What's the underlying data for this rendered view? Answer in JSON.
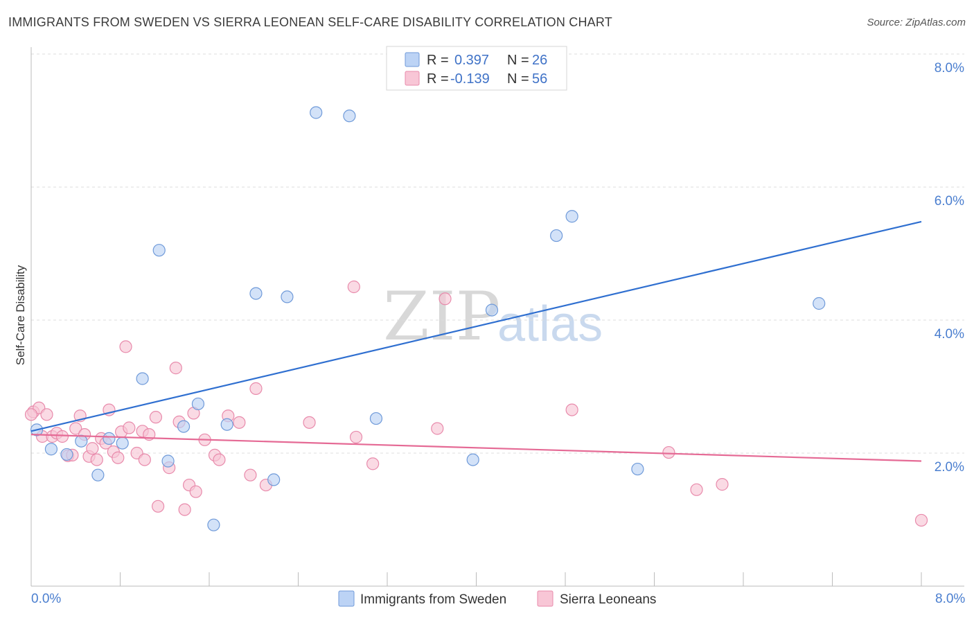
{
  "header": {
    "title": "IMMIGRANTS FROM SWEDEN VS SIERRA LEONEAN SELF-CARE DISABILITY CORRELATION CHART",
    "source": "Source: ZipAtlas.com"
  },
  "watermark": {
    "zip": "ZIP",
    "atlas": "atlas"
  },
  "colors": {
    "blue_fill": "#bcd3f5",
    "blue_stroke": "#6f9ad9",
    "blue_line": "#2f6fd0",
    "pink_fill": "#f8c6d6",
    "pink_stroke": "#e88aab",
    "pink_line": "#e56a95",
    "grid": "#dddddd",
    "tick_label": "#4a7ecf"
  },
  "legend": {
    "r_label": "R =",
    "n_label": "N =",
    "series": [
      {
        "r": "0.397",
        "n": "26"
      },
      {
        "r": "-0.139",
        "n": "56"
      }
    ]
  },
  "chart_data": {
    "type": "scatter",
    "title": "IMMIGRANTS FROM SWEDEN VS SIERRA LEONEAN SELF-CARE DISABILITY CORRELATION CHART",
    "xlabel": "",
    "ylabel": "Self-Care Disability",
    "xlim": [
      0,
      8
    ],
    "ylim": [
      0,
      8
    ],
    "x_tick_labels": {
      "min": "0.0%",
      "max": "8.0%"
    },
    "y_ticks": [
      {
        "value": 2,
        "label": "2.0%"
      },
      {
        "value": 4,
        "label": "4.0%"
      },
      {
        "value": 6,
        "label": "6.0%"
      },
      {
        "value": 8,
        "label": "8.0%"
      }
    ],
    "series": [
      {
        "name": "Immigrants from Sweden",
        "color": "blue",
        "trend": {
          "x0": 0.0,
          "y0": 2.33,
          "x1": 8.0,
          "y1": 5.48
        },
        "points": [
          [
            0.05,
            2.35
          ],
          [
            0.18,
            2.06
          ],
          [
            0.32,
            1.98
          ],
          [
            0.45,
            2.18
          ],
          [
            0.6,
            1.67
          ],
          [
            0.7,
            2.22
          ],
          [
            0.82,
            2.15
          ],
          [
            1.0,
            3.12
          ],
          [
            1.15,
            5.05
          ],
          [
            1.23,
            1.88
          ],
          [
            1.37,
            2.4
          ],
          [
            1.5,
            2.74
          ],
          [
            1.64,
            0.92
          ],
          [
            1.76,
            2.43
          ],
          [
            2.02,
            4.4
          ],
          [
            2.18,
            1.6
          ],
          [
            2.3,
            4.35
          ],
          [
            2.56,
            7.12
          ],
          [
            2.86,
            7.07
          ],
          [
            3.1,
            2.52
          ],
          [
            3.97,
            1.9
          ],
          [
            4.14,
            4.15
          ],
          [
            4.72,
            5.27
          ],
          [
            4.86,
            5.56
          ],
          [
            5.45,
            1.76
          ],
          [
            7.08,
            4.25
          ]
        ]
      },
      {
        "name": "Sierra Leoneans",
        "color": "pink",
        "trend": {
          "x0": 0.0,
          "y0": 2.28,
          "x1": 8.0,
          "y1": 1.88
        },
        "points": [
          [
            0.02,
            2.62
          ],
          [
            0.07,
            2.68
          ],
          [
            0.1,
            2.25
          ],
          [
            0.14,
            2.58
          ],
          [
            0.19,
            2.25
          ],
          [
            0.23,
            2.3
          ],
          [
            0.28,
            2.25
          ],
          [
            0.33,
            1.96
          ],
          [
            0.37,
            1.97
          ],
          [
            0.4,
            2.37
          ],
          [
            0.44,
            2.56
          ],
          [
            0.48,
            2.28
          ],
          [
            0.52,
            1.95
          ],
          [
            0.55,
            2.07
          ],
          [
            0.59,
            1.9
          ],
          [
            0.63,
            2.22
          ],
          [
            0.67,
            2.15
          ],
          [
            0.7,
            2.65
          ],
          [
            0.74,
            2.02
          ],
          [
            0.78,
            1.93
          ],
          [
            0.81,
            2.32
          ],
          [
            0.85,
            3.6
          ],
          [
            0.88,
            2.38
          ],
          [
            0.95,
            2.0
          ],
          [
            1.0,
            2.33
          ],
          [
            1.02,
            1.9
          ],
          [
            1.06,
            2.28
          ],
          [
            1.12,
            2.54
          ],
          [
            1.14,
            1.2
          ],
          [
            1.24,
            1.78
          ],
          [
            1.3,
            3.28
          ],
          [
            1.33,
            2.47
          ],
          [
            1.38,
            1.15
          ],
          [
            1.42,
            1.52
          ],
          [
            1.46,
            2.6
          ],
          [
            1.48,
            1.42
          ],
          [
            1.56,
            2.2
          ],
          [
            1.65,
            1.97
          ],
          [
            1.69,
            1.9
          ],
          [
            1.77,
            2.56
          ],
          [
            1.87,
            2.46
          ],
          [
            1.97,
            1.67
          ],
          [
            2.02,
            2.97
          ],
          [
            2.11,
            1.52
          ],
          [
            2.5,
            2.46
          ],
          [
            2.9,
            4.5
          ],
          [
            2.92,
            2.24
          ],
          [
            3.07,
            1.84
          ],
          [
            3.65,
            2.37
          ],
          [
            3.72,
            4.32
          ],
          [
            4.86,
            2.65
          ],
          [
            5.73,
            2.01
          ],
          [
            5.98,
            1.45
          ],
          [
            6.21,
            1.53
          ],
          [
            8.0,
            0.99
          ],
          [
            0.0,
            2.58
          ]
        ]
      }
    ]
  }
}
